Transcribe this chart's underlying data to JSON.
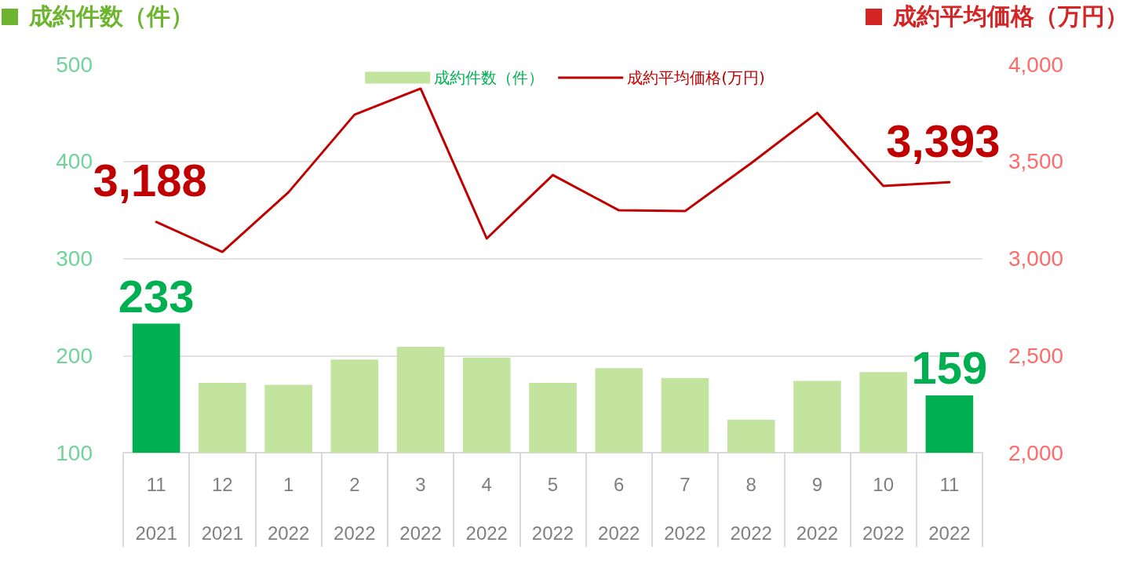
{
  "chart_data": {
    "type": "bar",
    "ylabel": "成約件数（件）",
    "y2label": "成約平均価格（万円）",
    "categories": [
      "11\n2021",
      "12\n2021",
      "1\n2022",
      "2\n2022",
      "3\n2022",
      "4\n2022",
      "5\n2022",
      "6\n2022",
      "7\n2022",
      "8\n2022",
      "9\n2022",
      "10\n2022",
      "11\n2022"
    ],
    "series": [
      {
        "name": "成約件数（件）",
        "color": "#c3e49e",
        "colors": [
          "#00b050",
          "#c3e49e",
          "#c3e49e",
          "#c3e49e",
          "#c3e49e",
          "#c3e49e",
          "#c3e49e",
          "#c3e49e",
          "#c3e49e",
          "#c3e49e",
          "#c3e49e",
          "#c3e49e",
          "#00b050"
        ],
        "values": [
          233,
          172,
          170,
          196,
          209,
          198,
          172,
          187,
          177,
          134,
          174,
          183,
          159
        ],
        "value_labels": [
          "233",
          null,
          null,
          null,
          null,
          null,
          null,
          null,
          null,
          null,
          null,
          null,
          "159"
        ]
      },
      {
        "name": "成約平均価格(万円)",
        "type": "line",
        "axis": "y2",
        "color": "#c00000",
        "values": [
          3188,
          3034,
          3341,
          3741,
          3875,
          3103,
          3430,
          3248,
          3244,
          3491,
          3750,
          3374,
          3393
        ],
        "value_labels": [
          "3,188",
          null,
          null,
          null,
          null,
          null,
          null,
          null,
          null,
          null,
          null,
          null,
          "3,393"
        ]
      }
    ],
    "ylim": [
      100,
      500
    ],
    "yticks": [
      100,
      200,
      300,
      400,
      500
    ],
    "y2lim": [
      2000,
      4000
    ],
    "y2ticks": [
      {
        "value": 2000,
        "label": "2,000"
      },
      {
        "value": 2500,
        "label": "2,500"
      },
      {
        "value": 3000,
        "label": "3,000"
      },
      {
        "value": 3500,
        "label": "3,500"
      },
      {
        "value": 4000,
        "label": "4,000"
      }
    ],
    "grid": "y",
    "legend": "top",
    "marker": "none"
  }
}
